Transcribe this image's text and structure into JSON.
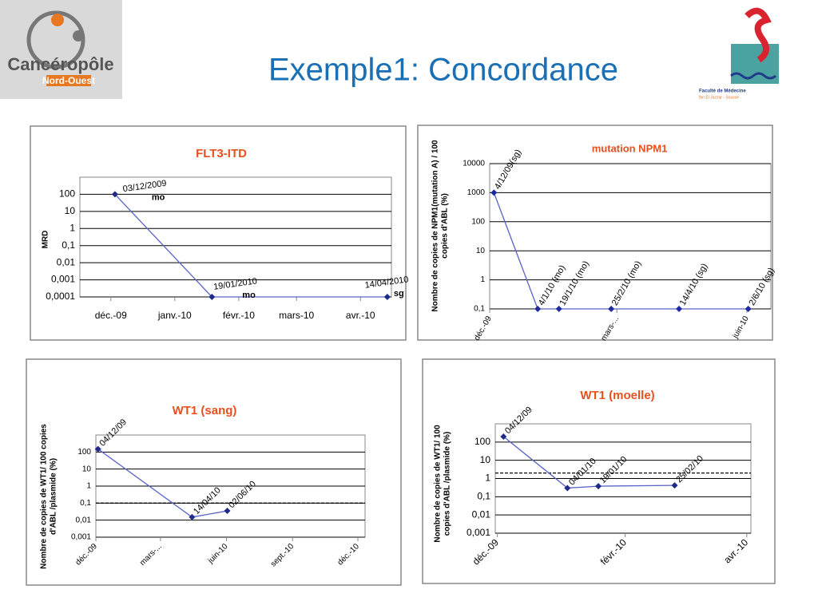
{
  "header": {
    "title": "Exemple1: Concordance",
    "left_logo": [
      "Cancéropôle",
      "Nord-Ouest"
    ],
    "right_logo": [
      "Faculté de Médecine",
      "Ibn El Jazzar - Sousse"
    ]
  },
  "chart_data": [
    {
      "type": "line",
      "title": "FLT3-ITD",
      "ylabel": [
        "MRD"
      ],
      "log_y": true,
      "grid": true,
      "color": "#5964c8",
      "marker_color": "#1f2a8a",
      "x": [
        "2009-12-03",
        "2010-01-19",
        "2010-04-14"
      ],
      "values": [
        100,
        0.0001,
        0.0001
      ],
      "point_labels": [
        "03/12/2009",
        "19/01/2010",
        "14/04/2010"
      ],
      "point_notes": [
        "mo",
        "mo",
        "sg"
      ],
      "xlim": [
        "2009-11-16",
        "2010-04-16"
      ],
      "xticks": [
        {
          "value": "2009-12",
          "label": "déc.-09"
        },
        {
          "value": "2010-01",
          "label": "janv.-10"
        },
        {
          "value": "2010-02",
          "label": "févr.-10"
        },
        {
          "value": "2010-03",
          "label": "mars-10"
        },
        {
          "value": "2010-04",
          "label": "avr.-10"
        }
      ],
      "ylim": [
        0.0001,
        1000
      ],
      "yticks": [
        100,
        10,
        1,
        {
          "value": 0.1,
          "label": "0,1"
        },
        {
          "value": 0.01,
          "label": "0,01"
        },
        {
          "value": 0.001,
          "label": "0,001"
        },
        {
          "value": 0.0001,
          "label": "0,0001"
        }
      ]
    },
    {
      "type": "line",
      "title": "mutation NPM1",
      "ylabel": [
        "Nombre de copies de NPM1(mutation A) / 100",
        "copies d'ABL (%)"
      ],
      "log_y": true,
      "grid": true,
      "color": "#5964c8",
      "marker_color": "#1f2aa0",
      "x": [
        "2009-12-04",
        "2010-01-04",
        "2010-01-19",
        "2010-02-25",
        "2010-04-14",
        "2010-06-02"
      ],
      "values": [
        1000,
        0.1,
        0.1,
        0.1,
        0.1,
        0.1
      ],
      "point_labels": [
        "4/12/09(sg)",
        "4/1/10 (mo)",
        "19/1/10 (mo)",
        "25/2/10 (mo)",
        "14/4/10 (sg)",
        "2/6/10 (sg)"
      ],
      "xlim": [
        "2009-12-01",
        "2010-06-18"
      ],
      "xticks": [
        {
          "value": "2009-12",
          "label": "déc.-09"
        },
        {
          "value": "2010-03",
          "label": "mars-..."
        },
        {
          "value": "2010-06",
          "label": "juin-10"
        }
      ],
      "ylim": [
        0.1,
        10000
      ],
      "yticks": [
        10000,
        1000,
        100,
        10,
        1,
        {
          "value": 0.1,
          "label": "0,1"
        }
      ]
    },
    {
      "type": "line",
      "title": "WT1 (sang)",
      "ylabel": [
        "Nombre de copies de WT1/ 100 copies",
        "d'ABL /plasmide (%)"
      ],
      "log_y": true,
      "grid": true,
      "color": "#5964c8",
      "marker_color": "#1f2a8a",
      "threshold": 0.1,
      "x": [
        "2009-12-04",
        "2010-04-14",
        "2010-06-02"
      ],
      "values": [
        150,
        0.015,
        0.035
      ],
      "point_labels": [
        "04/12/09",
        "14/04/10",
        "02/06/10"
      ],
      "xlim": [
        "2009-12-01",
        "2010-12-11"
      ],
      "xticks": [
        {
          "value": "2009-12",
          "label": "déc.-09"
        },
        {
          "value": "2010-03",
          "label": "mars-..."
        },
        {
          "value": "2010-06",
          "label": "juin-10"
        },
        {
          "value": "2010-09",
          "label": "sept.-10"
        },
        {
          "value": "2010-12",
          "label": "déc.-10"
        }
      ],
      "ylim": [
        0.001,
        1000
      ],
      "yticks": [
        100,
        10,
        1,
        {
          "value": 0.1,
          "label": "0,1"
        },
        {
          "value": 0.01,
          "label": "0,01"
        },
        {
          "value": 0.001,
          "label": "0,001"
        }
      ]
    },
    {
      "type": "line",
      "title": "WT1 (moelle)",
      "ylabel": [
        "Nombre de copies de WT1/ 100",
        "copies d'ABL /plasmide (%)"
      ],
      "log_y": true,
      "grid": true,
      "color": "#5964c8",
      "marker_color": "#1f2a8a",
      "threshold": 2,
      "x": [
        "2009-12-04",
        "2010-01-04",
        "2010-01-19",
        "2010-02-25"
      ],
      "values": [
        200,
        0.3,
        0.38,
        0.42
      ],
      "point_labels": [
        "04/12/09",
        "04/01/10",
        "19/01/10",
        "25/02/10"
      ],
      "xlim": [
        "2009-11-30",
        "2010-04-03"
      ],
      "xticks": [
        {
          "value": "2009-12",
          "label": "déc.-09"
        },
        {
          "value": "2010-02",
          "label": "févr.-10"
        },
        {
          "value": "2010-04",
          "label": "avr.-10"
        }
      ],
      "ylim": [
        0.001,
        1000
      ],
      "yticks": [
        100,
        10,
        1,
        {
          "value": 0.1,
          "label": "0,1"
        },
        {
          "value": 0.01,
          "label": "0,01"
        },
        {
          "value": 0.001,
          "label": "0,001"
        }
      ]
    }
  ]
}
